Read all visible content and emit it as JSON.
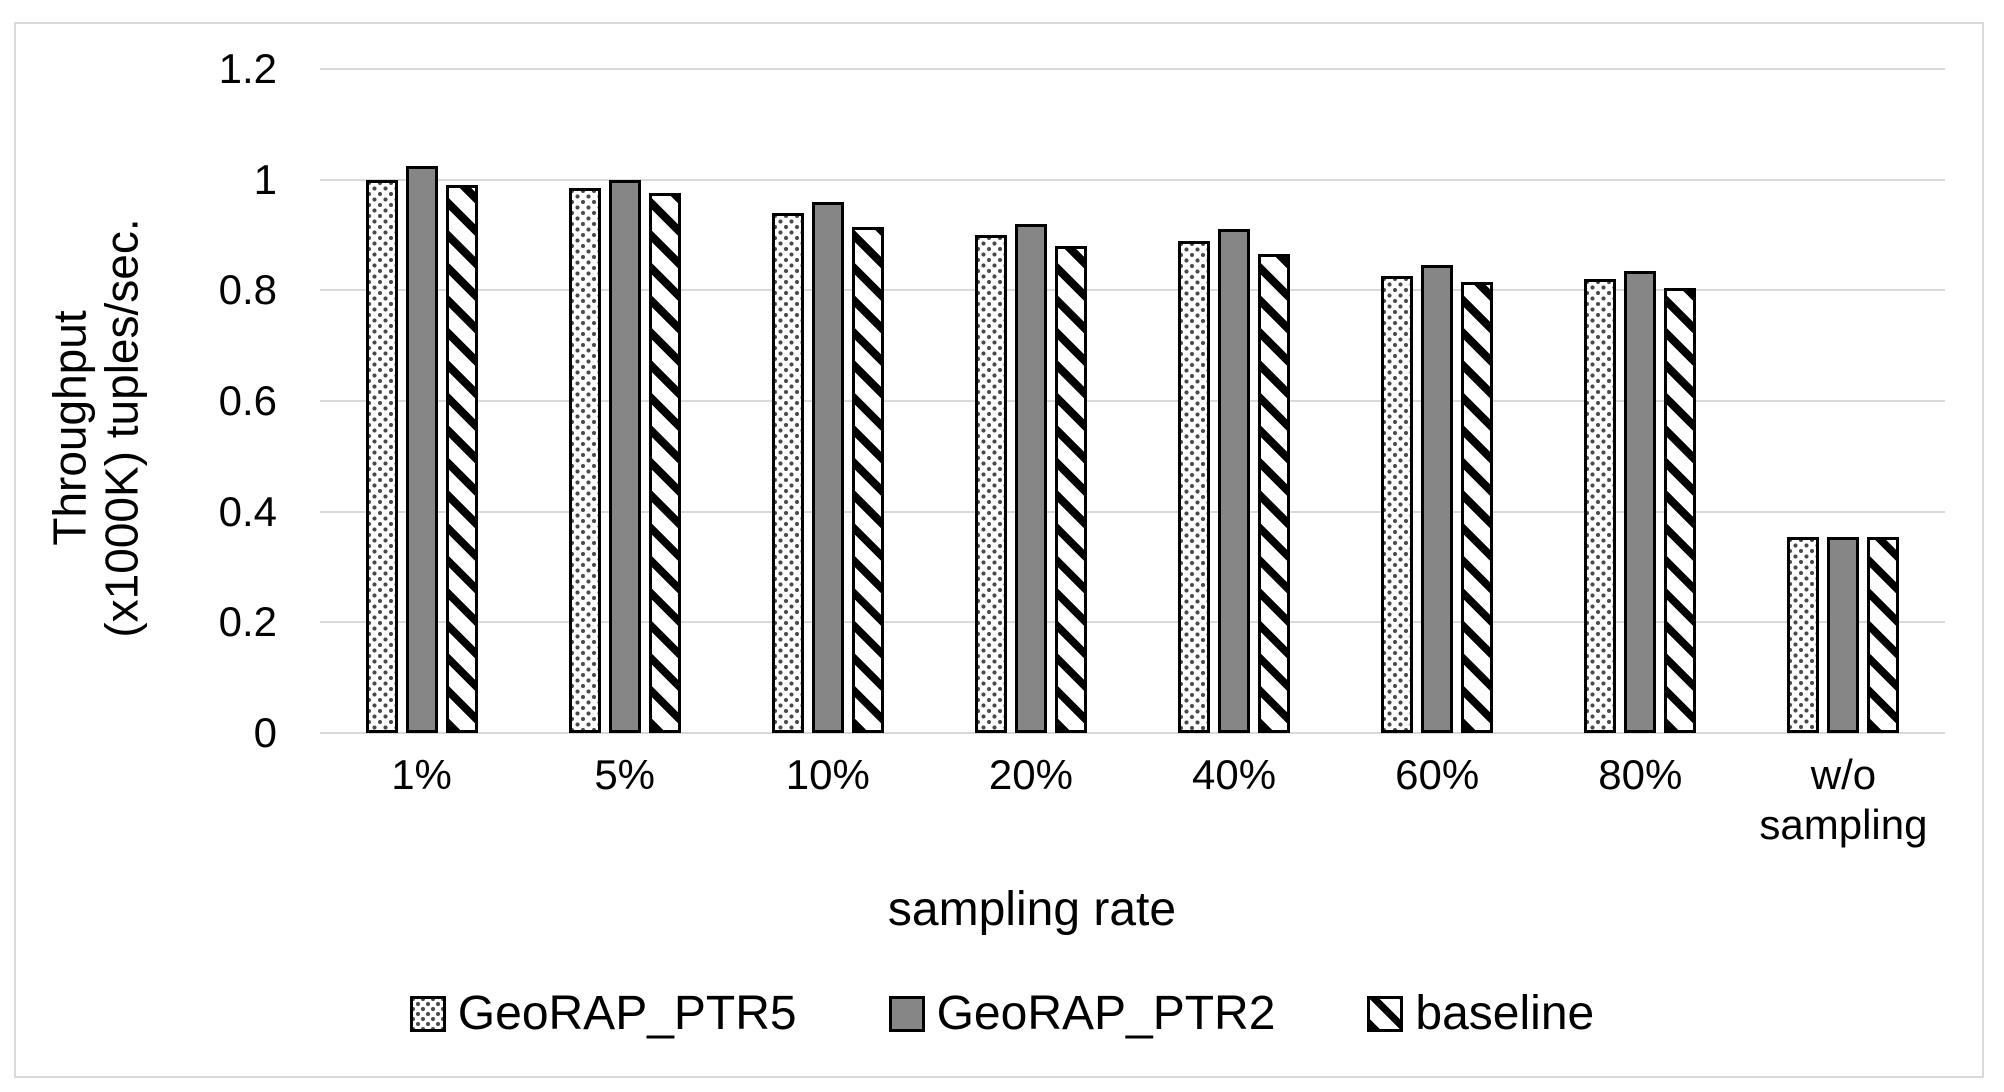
{
  "chart_data": {
    "type": "bar",
    "title": "",
    "xlabel": "sampling rate",
    "ylabel": "Throughput (x1000K) tuples/sec.",
    "ylabel_line1": "Throughput",
    "ylabel_line2": "(x1000K) tuples/sec.",
    "categories": [
      "1%",
      "5%",
      "10%",
      "20%",
      "40%",
      "60%",
      "80%",
      "w/o sampling"
    ],
    "series": [
      {
        "name": "GeoRAP_PTR5",
        "pattern": "dots",
        "values": [
          1.0,
          0.985,
          0.94,
          0.9,
          0.89,
          0.825,
          0.82,
          0.355
        ]
      },
      {
        "name": "GeoRAP_PTR2",
        "pattern": "solid-gray",
        "values": [
          1.025,
          1.0,
          0.96,
          0.92,
          0.91,
          0.845,
          0.835,
          0.355
        ]
      },
      {
        "name": "baseline",
        "pattern": "diagonal-hatch",
        "values": [
          0.99,
          0.975,
          0.915,
          0.88,
          0.865,
          0.815,
          0.805,
          0.355
        ]
      }
    ],
    "ylim": [
      0,
      1.2
    ],
    "yticks": [
      {
        "v": 0,
        "label": "0"
      },
      {
        "v": 0.2,
        "label": "0.2"
      },
      {
        "v": 0.4,
        "label": "0.4"
      },
      {
        "v": 0.6,
        "label": "0.6"
      },
      {
        "v": 0.8,
        "label": "0.8"
      },
      {
        "v": 1,
        "label": "1"
      },
      {
        "v": 1.2,
        "label": "1.2"
      }
    ],
    "grid": true,
    "legend_position": "bottom"
  },
  "colors": {
    "bar_gray": "#868686",
    "grid_line": "#d9d9d9",
    "frame_border": "#d9d9d9",
    "hatch_black": "#000000",
    "dot_color": "#4a4a4a",
    "text": "#000000"
  }
}
